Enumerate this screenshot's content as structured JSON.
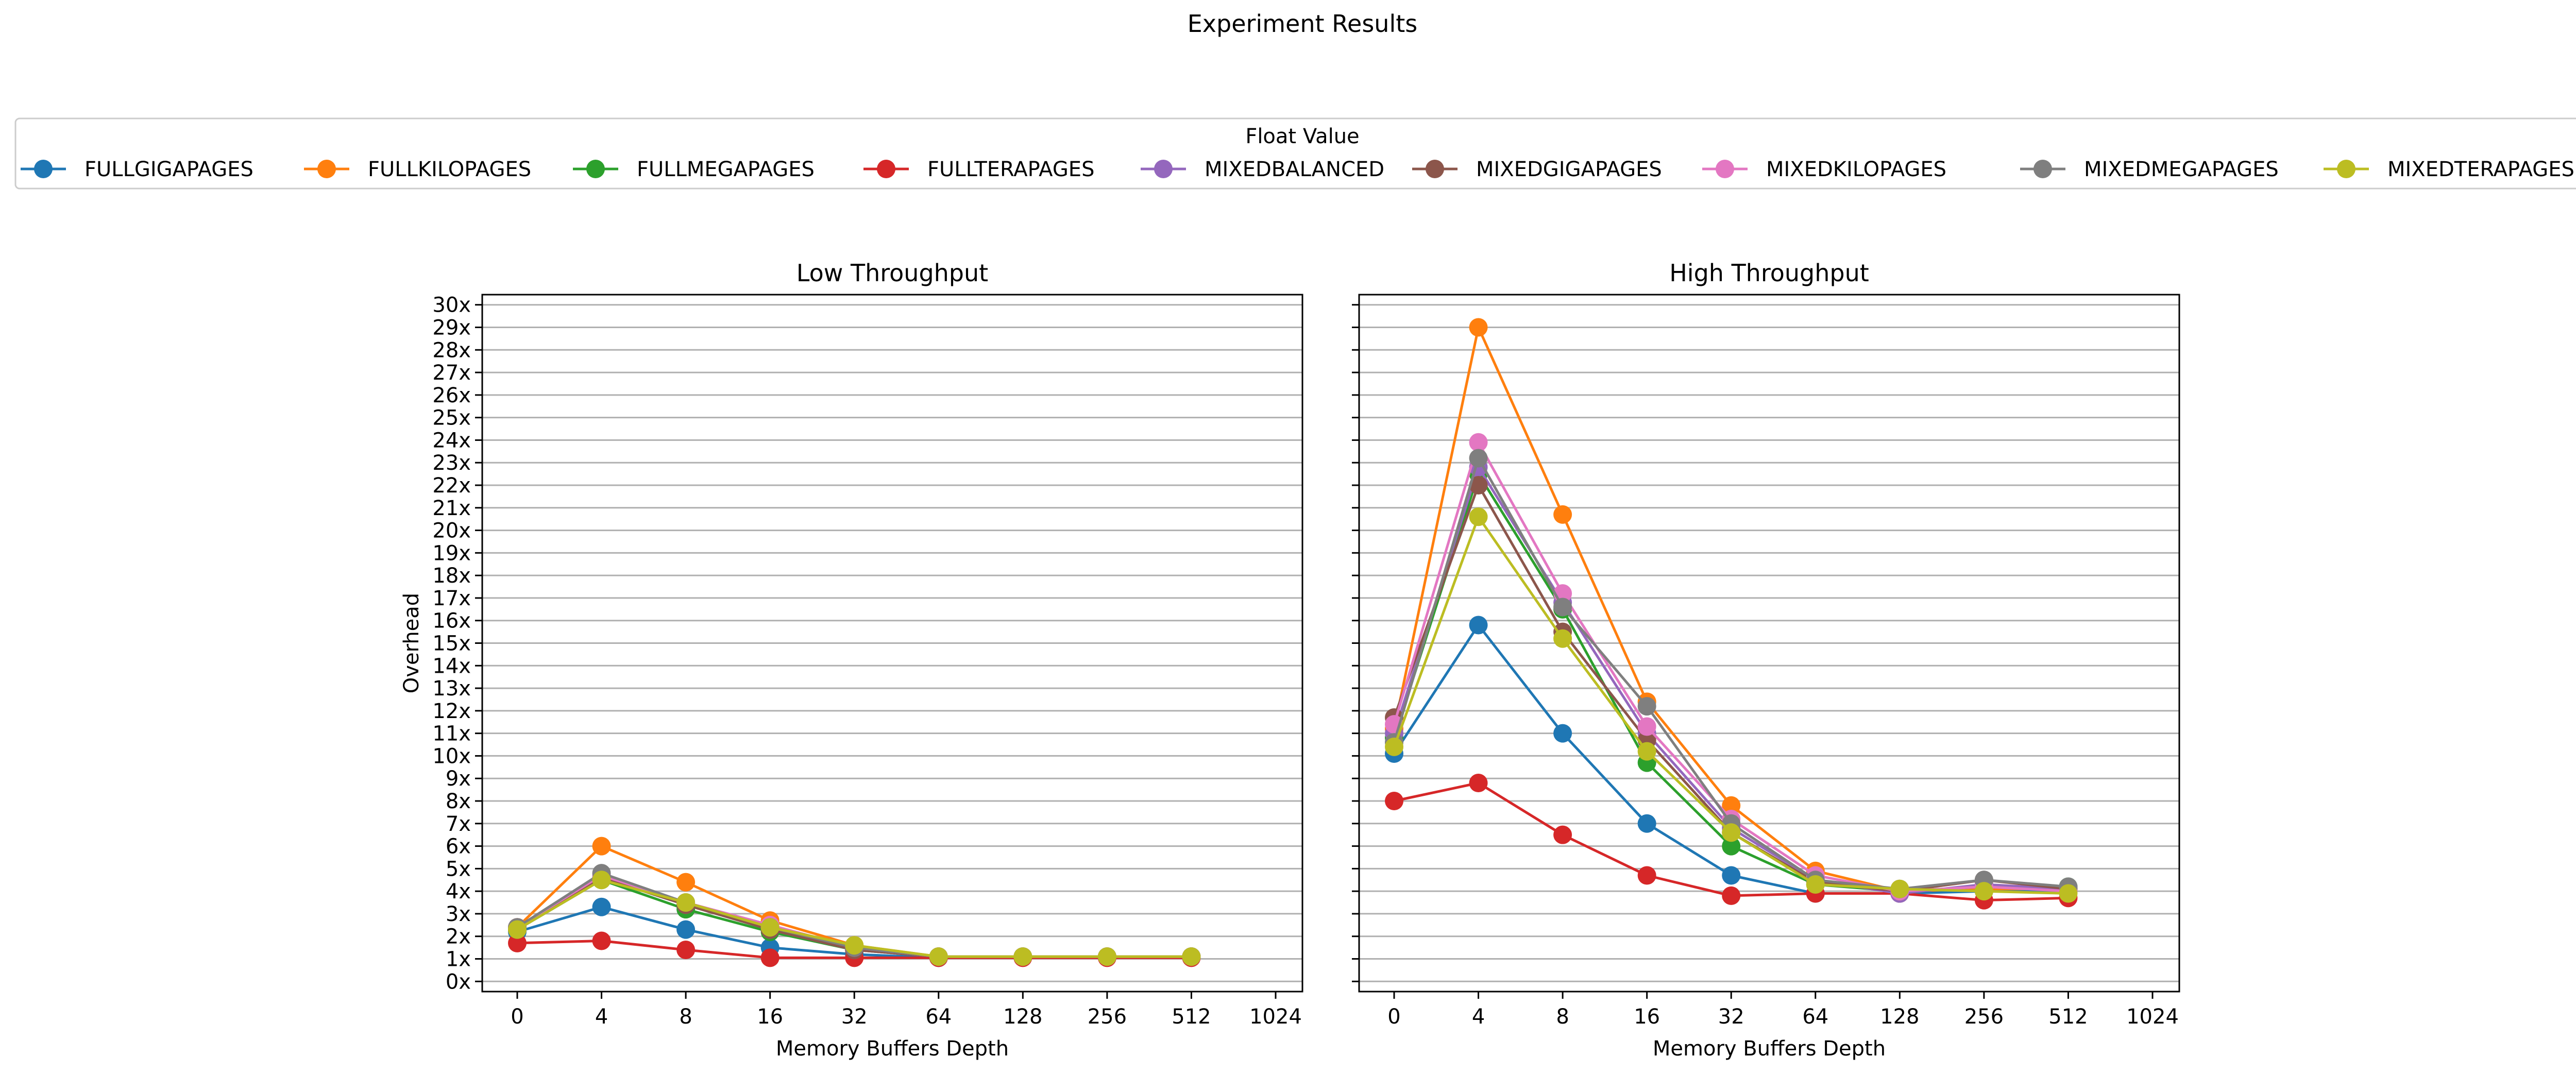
{
  "figure": {
    "title": "Experiment Results",
    "legend_title": "Float Value"
  },
  "chart_data": [
    {
      "type": "line",
      "title": "Low Throughput",
      "xlabel": "Memory Buffers Depth",
      "ylabel": "Overhead",
      "x_tick_labels": [
        "0",
        "4",
        "8",
        "16",
        "32",
        "64",
        "128",
        "256",
        "512",
        "1024"
      ],
      "x": [
        "0",
        "4",
        "8",
        "16",
        "32",
        "64",
        "128",
        "256",
        "512"
      ],
      "y_tick_labels": [
        "0x",
        "1x",
        "2x",
        "3x",
        "4x",
        "5x",
        "6x",
        "7x",
        "8x",
        "9x",
        "10x",
        "11x",
        "12x",
        "13x",
        "14x",
        "15x",
        "16x",
        "17x",
        "18x",
        "19x",
        "20x",
        "21x",
        "22x",
        "23x",
        "24x",
        "25x",
        "26x",
        "27x",
        "28x",
        "29x",
        "30x"
      ],
      "ylim": [
        0,
        30
      ],
      "grid": "horizontal",
      "legend": "top",
      "series": [
        {
          "name": "FULLGIGAPAGES",
          "color": "#1f77b4",
          "values": [
            2.2,
            3.3,
            2.3,
            1.5,
            1.2,
            1.05,
            1.1,
            1.1,
            1.1
          ]
        },
        {
          "name": "FULLKILOPAGES",
          "color": "#ff7f0e",
          "values": [
            2.4,
            6.0,
            4.4,
            2.7,
            1.6,
            1.1,
            1.1,
            1.1,
            1.1
          ]
        },
        {
          "name": "FULLMEGAPAGES",
          "color": "#2ca02c",
          "values": [
            2.3,
            4.5,
            3.2,
            2.2,
            1.4,
            1.1,
            1.1,
            1.1,
            1.1
          ]
        },
        {
          "name": "FULLTERAPAGES",
          "color": "#d62728",
          "values": [
            1.7,
            1.8,
            1.4,
            1.05,
            1.05,
            1.05,
            1.05,
            1.05,
            1.05
          ]
        },
        {
          "name": "MIXEDBALANCED",
          "color": "#9467bd",
          "values": [
            2.3,
            4.6,
            3.4,
            2.3,
            1.4,
            1.1,
            1.1,
            1.1,
            1.1
          ]
        },
        {
          "name": "MIXEDGIGAPAGES",
          "color": "#8c564b",
          "values": [
            2.3,
            4.6,
            3.4,
            2.3,
            1.4,
            1.1,
            1.1,
            1.1,
            1.1
          ]
        },
        {
          "name": "MIXEDKILOPAGES",
          "color": "#e377c2",
          "values": [
            2.4,
            4.7,
            3.5,
            2.5,
            1.5,
            1.1,
            1.1,
            1.1,
            1.1
          ]
        },
        {
          "name": "MIXEDMEGAPAGES",
          "color": "#7f7f7f",
          "values": [
            2.4,
            4.8,
            3.5,
            2.4,
            1.5,
            1.1,
            1.1,
            1.1,
            1.1
          ]
        },
        {
          "name": "MIXEDTERAPAGES",
          "color": "#bcbd22",
          "values": [
            2.3,
            4.5,
            3.5,
            2.4,
            1.6,
            1.1,
            1.1,
            1.1,
            1.1
          ]
        }
      ]
    },
    {
      "type": "line",
      "title": "High Throughput",
      "xlabel": "Memory Buffers Depth",
      "ylabel": "",
      "x_tick_labels": [
        "0",
        "4",
        "8",
        "16",
        "32",
        "64",
        "128",
        "256",
        "512",
        "1024"
      ],
      "x": [
        "0",
        "4",
        "8",
        "16",
        "32",
        "64",
        "128",
        "256",
        "512"
      ],
      "y_tick_labels": [],
      "ylim": [
        0,
        30
      ],
      "grid": "horizontal",
      "legend": "top",
      "series": [
        {
          "name": "FULLGIGAPAGES",
          "color": "#1f77b4",
          "values": [
            10.1,
            15.8,
            11.0,
            7.0,
            4.7,
            3.9,
            3.9,
            4.0,
            4.0
          ]
        },
        {
          "name": "FULLKILOPAGES",
          "color": "#ff7f0e",
          "values": [
            11.2,
            29.0,
            20.7,
            12.4,
            7.8,
            4.9,
            4.0,
            4.1,
            4.1
          ]
        },
        {
          "name": "FULLMEGAPAGES",
          "color": "#2ca02c",
          "values": [
            10.8,
            22.5,
            16.5,
            9.7,
            6.0,
            4.3,
            4.0,
            4.2,
            4.2
          ]
        },
        {
          "name": "FULLTERAPAGES",
          "color": "#d62728",
          "values": [
            8.0,
            8.8,
            6.5,
            4.7,
            3.8,
            3.9,
            3.9,
            3.6,
            3.7
          ]
        },
        {
          "name": "MIXEDBALANCED",
          "color": "#9467bd",
          "values": [
            11.0,
            22.8,
            16.8,
            11.0,
            6.8,
            4.5,
            3.9,
            4.3,
            4.1
          ]
        },
        {
          "name": "MIXEDGIGAPAGES",
          "color": "#8c564b",
          "values": [
            11.7,
            22.0,
            15.5,
            10.7,
            6.6,
            4.4,
            4.0,
            4.5,
            4.1
          ]
        },
        {
          "name": "MIXEDKILOPAGES",
          "color": "#e377c2",
          "values": [
            11.4,
            23.9,
            17.2,
            11.3,
            7.2,
            4.7,
            4.0,
            4.2,
            4.0
          ]
        },
        {
          "name": "MIXEDMEGAPAGES",
          "color": "#7f7f7f",
          "values": [
            10.6,
            23.2,
            16.6,
            12.2,
            7.0,
            4.5,
            4.1,
            4.5,
            4.2
          ]
        },
        {
          "name": "MIXEDTERAPAGES",
          "color": "#bcbd22",
          "values": [
            10.4,
            20.6,
            15.2,
            10.2,
            6.6,
            4.3,
            4.1,
            4.0,
            3.9
          ]
        }
      ]
    }
  ]
}
